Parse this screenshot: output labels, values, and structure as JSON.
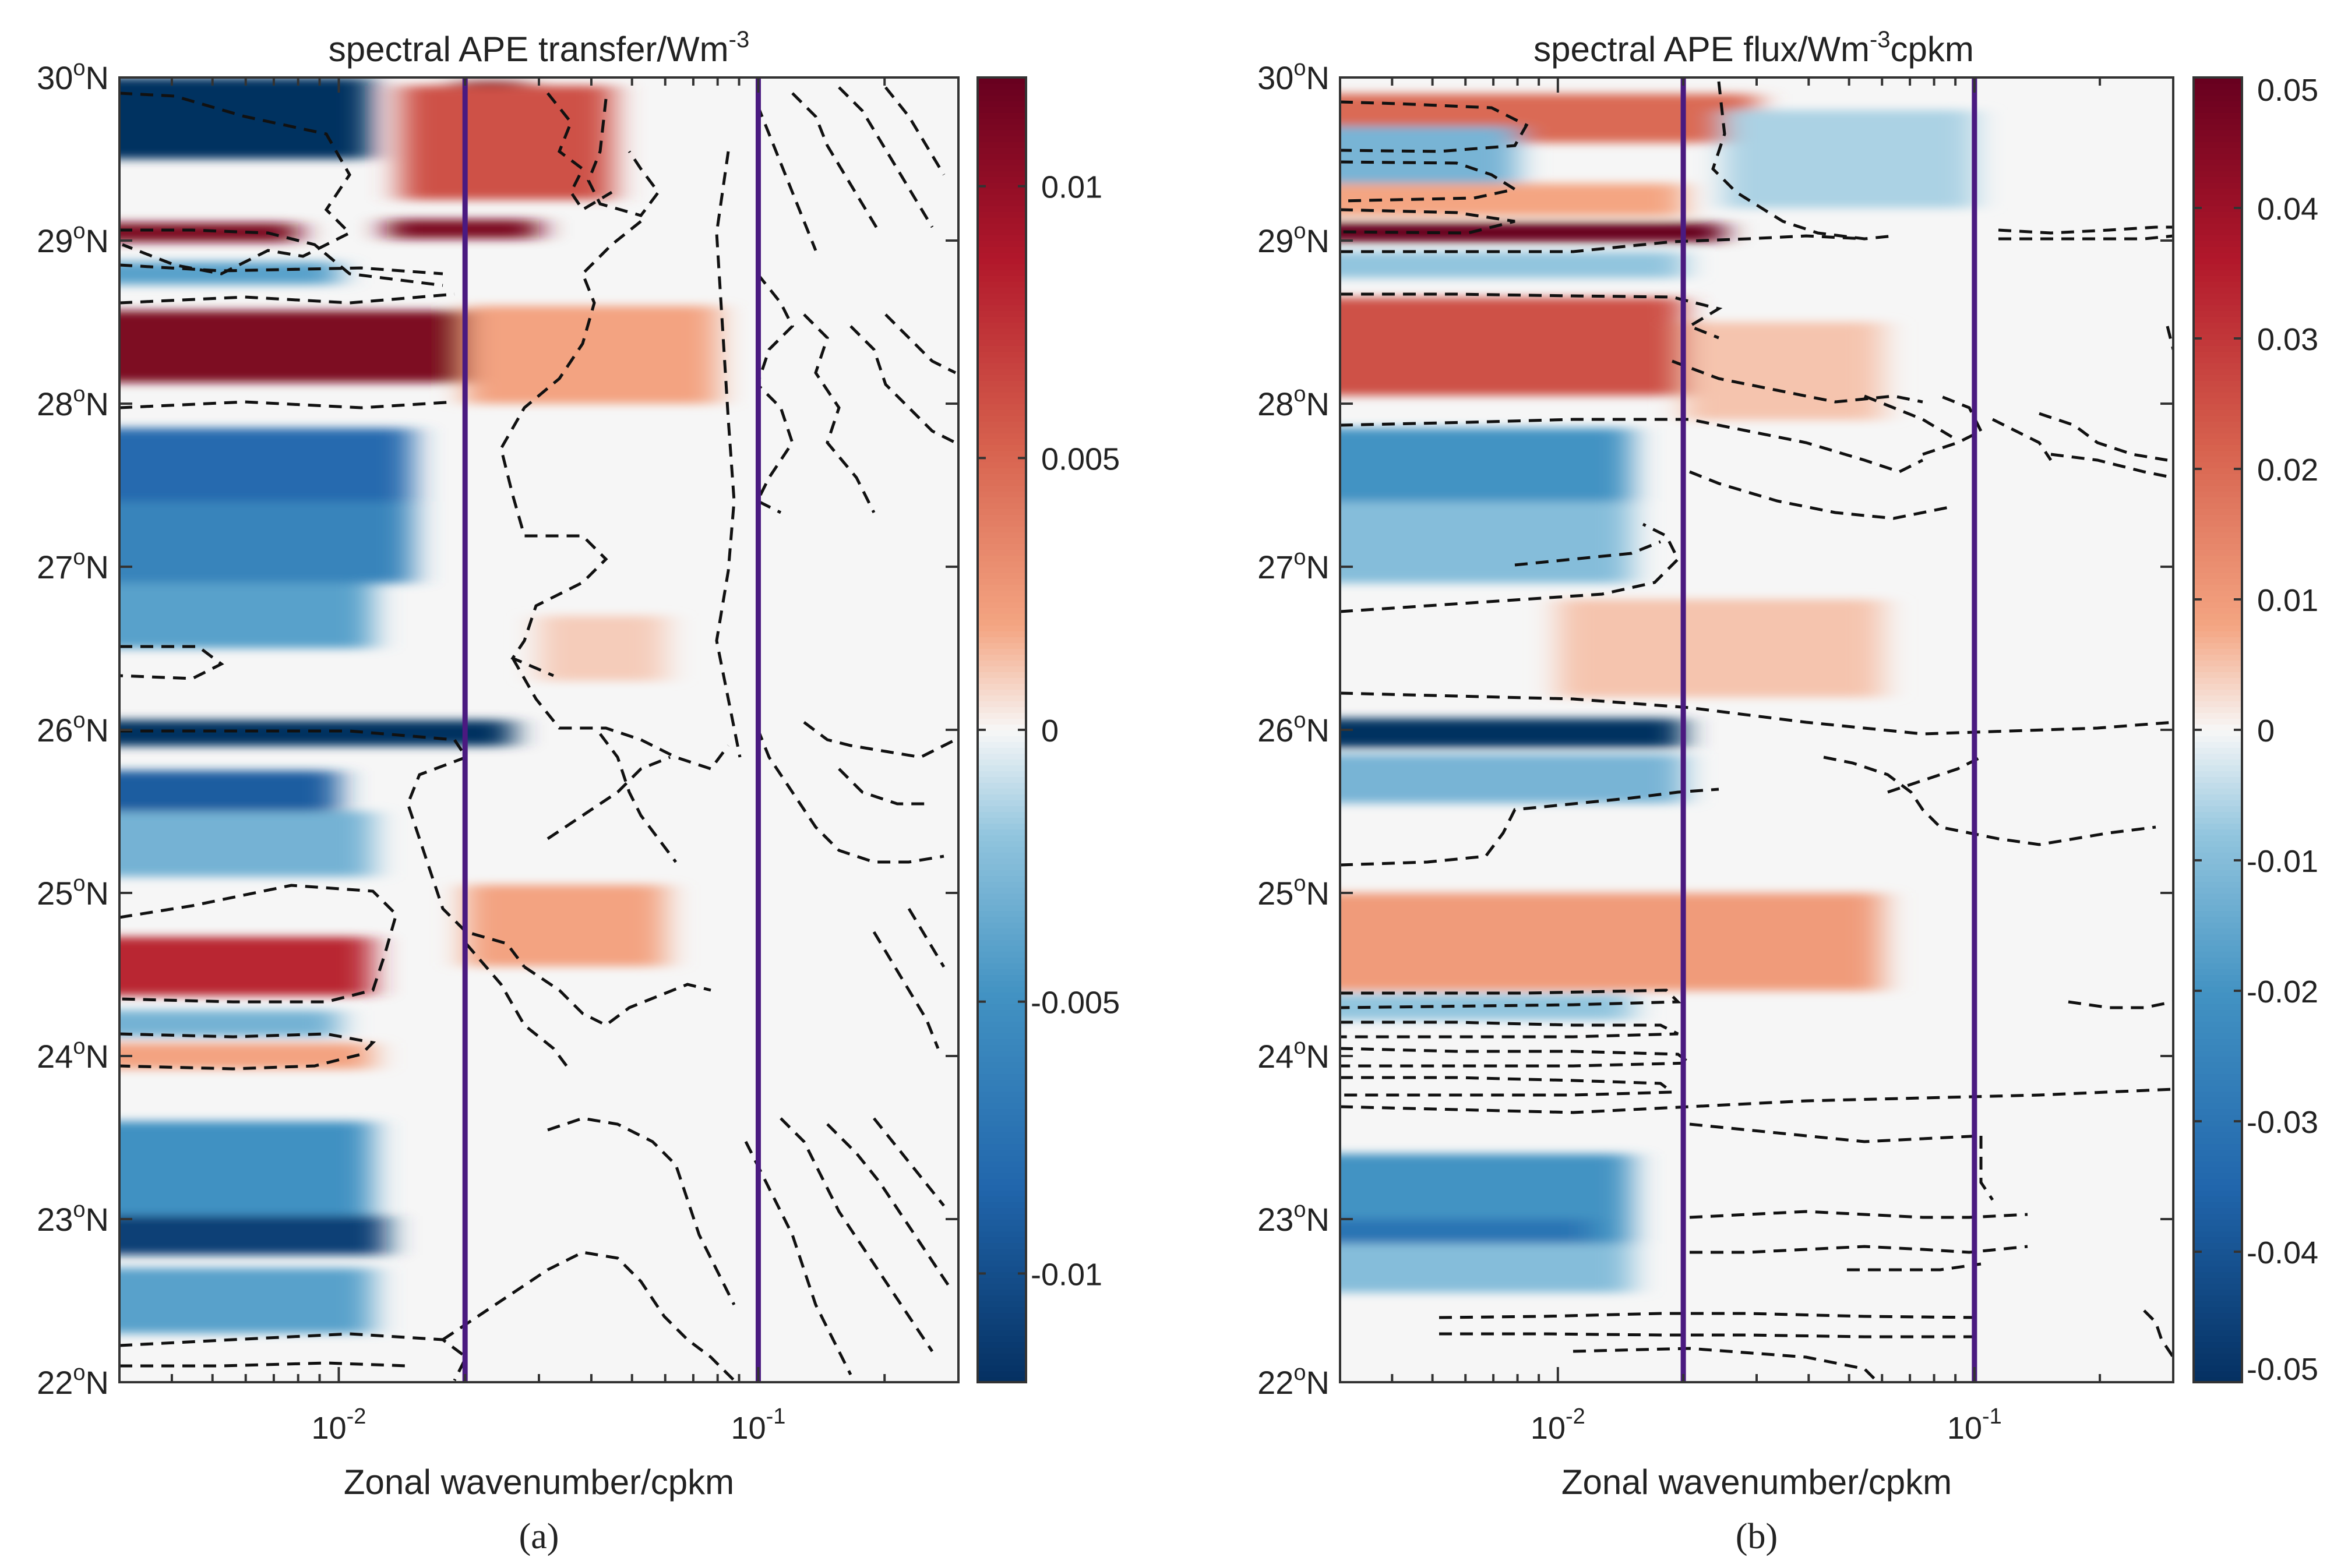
{
  "chart_data": [
    {
      "panel": "(a)",
      "type": "heatmap",
      "title": "spectral APE transfer/Wm",
      "title_superscript": "-3",
      "xlabel": "Zonal wavenumber/cpkm",
      "ylabel": "",
      "x_scale": "log",
      "xlim": [
        0.003,
        0.3
      ],
      "ylim": [
        22,
        30
      ],
      "x_ticks": [
        {
          "value": 0.01,
          "base": "10",
          "exp": "-2"
        },
        {
          "value": 0.1,
          "base": "10",
          "exp": "-1"
        }
      ],
      "y_ticks": [
        {
          "value": 22,
          "label": "22",
          "sup": "o",
          "suffix": "N"
        },
        {
          "value": 23,
          "label": "23",
          "sup": "o",
          "suffix": "N"
        },
        {
          "value": 24,
          "label": "24",
          "sup": "o",
          "suffix": "N"
        },
        {
          "value": 25,
          "label": "25",
          "sup": "o",
          "suffix": "N"
        },
        {
          "value": 26,
          "label": "26",
          "sup": "o",
          "suffix": "N"
        },
        {
          "value": 27,
          "label": "27",
          "sup": "o",
          "suffix": "N"
        },
        {
          "value": 28,
          "label": "28",
          "sup": "o",
          "suffix": "N"
        },
        {
          "value": 29,
          "label": "29",
          "sup": "o",
          "suffix": "N"
        },
        {
          "value": 30,
          "label": "30",
          "sup": "o",
          "suffix": "N"
        }
      ],
      "vertical_lines": [
        0.02,
        0.1
      ],
      "vertical_line_color": "#4a1a80",
      "colorbar": {
        "limits": [
          -0.012,
          0.012
        ],
        "ticks": [
          -0.01,
          -0.005,
          0,
          0.005,
          0.01
        ],
        "tick_labels": [
          "-0.01",
          "-0.005",
          "0",
          "0.005",
          "0.01"
        ]
      },
      "bands": [
        {
          "lat": 29.75,
          "half_width": 0.25,
          "value": -0.012,
          "x_end": 0.012
        },
        {
          "lat": 29.7,
          "half_width": 0.28,
          "value": 0.012,
          "x_start": 0.019,
          "x_end": 0.028
        },
        {
          "lat": 29.6,
          "half_width": 0.35,
          "value": 0.006,
          "x_start": 0.014,
          "x_end": 0.045
        },
        {
          "lat": 29.05,
          "half_width": 0.06,
          "value": 0.011,
          "x_end": 0.008
        },
        {
          "lat": 29.07,
          "half_width": 0.06,
          "value": 0.011,
          "x_start": 0.013,
          "x_end": 0.03
        },
        {
          "lat": 28.8,
          "half_width": 0.07,
          "value": -0.004,
          "x_end": 0.01
        },
        {
          "lat": 28.35,
          "half_width": 0.22,
          "value": 0.011,
          "x_end": 0.02
        },
        {
          "lat": 28.3,
          "half_width": 0.3,
          "value": 0.002,
          "x_start": 0.02,
          "x_end": 0.08
        },
        {
          "lat": 27.6,
          "half_width": 0.25,
          "value": -0.008,
          "x_end": 0.015
        },
        {
          "lat": 27.15,
          "half_width": 0.25,
          "value": -0.006,
          "x_end": 0.015
        },
        {
          "lat": 26.7,
          "half_width": 0.2,
          "value": -0.004,
          "x_end": 0.012
        },
        {
          "lat": 26.5,
          "half_width": 0.2,
          "value": 0.001,
          "x_start": 0.03,
          "x_end": 0.06
        },
        {
          "lat": 25.98,
          "half_width": 0.08,
          "value": -0.012,
          "x_end": 0.026
        },
        {
          "lat": 25.6,
          "half_width": 0.15,
          "value": -0.009,
          "x_end": 0.01
        },
        {
          "lat": 25.3,
          "half_width": 0.2,
          "value": -0.003,
          "x_end": 0.012
        },
        {
          "lat": 24.8,
          "half_width": 0.25,
          "value": 0.002,
          "x_start": 0.02,
          "x_end": 0.06
        },
        {
          "lat": 24.55,
          "half_width": 0.18,
          "value": 0.008,
          "x_end": 0.012
        },
        {
          "lat": 24.2,
          "half_width": 0.08,
          "value": -0.003,
          "x_end": 0.01
        },
        {
          "lat": 24.0,
          "half_width": 0.08,
          "value": 0.002,
          "x_end": 0.012
        },
        {
          "lat": 23.3,
          "half_width": 0.3,
          "value": -0.005,
          "x_end": 0.012
        },
        {
          "lat": 22.9,
          "half_width": 0.12,
          "value": -0.011,
          "x_end": 0.013
        },
        {
          "lat": 22.5,
          "half_width": 0.2,
          "value": -0.004,
          "x_end": 0.012
        }
      ]
    },
    {
      "panel": "(b)",
      "type": "heatmap",
      "title": "spectral APE flux/Wm",
      "title_superscript": "-3",
      "title_suffix": "cpkm",
      "xlabel": "Zonal wavenumber/cpkm",
      "ylabel": "",
      "x_scale": "log",
      "xlim": [
        0.003,
        0.3
      ],
      "ylim": [
        22,
        30
      ],
      "x_ticks": [
        {
          "value": 0.01,
          "base": "10",
          "exp": "-2"
        },
        {
          "value": 0.1,
          "base": "10",
          "exp": "-1"
        }
      ],
      "y_ticks": [
        {
          "value": 22,
          "label": "22",
          "sup": "o",
          "suffix": "N"
        },
        {
          "value": 23,
          "label": "23",
          "sup": "o",
          "suffix": "N"
        },
        {
          "value": 24,
          "label": "24",
          "sup": "o",
          "suffix": "N"
        },
        {
          "value": 25,
          "label": "25",
          "sup": "o",
          "suffix": "N"
        },
        {
          "value": 26,
          "label": "26",
          "sup": "o",
          "suffix": "N"
        },
        {
          "value": 27,
          "label": "27",
          "sup": "o",
          "suffix": "N"
        },
        {
          "value": 28,
          "label": "28",
          "sup": "o",
          "suffix": "N"
        },
        {
          "value": 29,
          "label": "29",
          "sup": "o",
          "suffix": "N"
        },
        {
          "value": 30,
          "label": "30",
          "sup": "o",
          "suffix": "N"
        }
      ],
      "vertical_lines": [
        0.02,
        0.1
      ],
      "vertical_line_color": "#4a1a80",
      "colorbar": {
        "limits": [
          -0.05,
          0.05
        ],
        "ticks": [
          -0.05,
          -0.04,
          -0.03,
          -0.02,
          -0.01,
          0,
          0.01,
          0.02,
          0.03,
          0.04,
          0.05
        ],
        "tick_labels": [
          "-0.05",
          "-0.04",
          "-0.03",
          "-0.02",
          "-0.01",
          "0",
          "0.01",
          "0.02",
          "0.03",
          "0.04",
          "0.05"
        ]
      },
      "bands": [
        {
          "lat": 29.75,
          "half_width": 0.15,
          "value": 0.02,
          "x_end": 0.03
        },
        {
          "lat": 29.5,
          "half_width": 0.2,
          "value": -0.012,
          "x_end": 0.008
        },
        {
          "lat": 29.5,
          "half_width": 0.3,
          "value": -0.006,
          "x_start": 0.025,
          "x_end": 0.1
        },
        {
          "lat": 29.25,
          "half_width": 0.1,
          "value": 0.008,
          "x_end": 0.02
        },
        {
          "lat": 29.05,
          "half_width": 0.06,
          "value": 0.05,
          "x_end": 0.025
        },
        {
          "lat": 28.85,
          "half_width": 0.08,
          "value": -0.008,
          "x_end": 0.02
        },
        {
          "lat": 28.35,
          "half_width": 0.3,
          "value": 0.025,
          "x_end": 0.02
        },
        {
          "lat": 28.2,
          "half_width": 0.3,
          "value": 0.005,
          "x_start": 0.02,
          "x_end": 0.06
        },
        {
          "lat": 27.6,
          "half_width": 0.25,
          "value": -0.02,
          "x_end": 0.015
        },
        {
          "lat": 27.15,
          "half_width": 0.25,
          "value": -0.01,
          "x_end": 0.015
        },
        {
          "lat": 26.5,
          "half_width": 0.3,
          "value": 0.005,
          "x_start": 0.01,
          "x_end": 0.06
        },
        {
          "lat": 25.98,
          "half_width": 0.09,
          "value": -0.05,
          "x_end": 0.02
        },
        {
          "lat": 25.7,
          "half_width": 0.15,
          "value": -0.012,
          "x_end": 0.02
        },
        {
          "lat": 24.7,
          "half_width": 0.3,
          "value": 0.01,
          "x_end": 0.06
        },
        {
          "lat": 24.3,
          "half_width": 0.08,
          "value": -0.008,
          "x_end": 0.015
        },
        {
          "lat": 23.1,
          "half_width": 0.3,
          "value": -0.02,
          "x_end": 0.015
        },
        {
          "lat": 22.9,
          "half_width": 0.1,
          "value": -0.03,
          "x_end": 0.012
        },
        {
          "lat": 22.7,
          "half_width": 0.15,
          "value": -0.01,
          "x_end": 0.015
        }
      ]
    }
  ]
}
